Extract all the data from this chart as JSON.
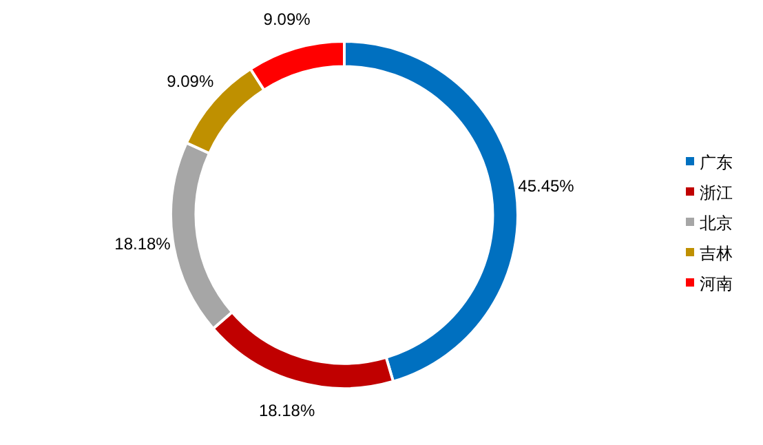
{
  "chart_data": {
    "type": "donut",
    "categories": [
      "广东",
      "浙江",
      "北京",
      "吉林",
      "河南"
    ],
    "values": [
      45.45,
      18.18,
      18.18,
      9.09,
      9.09
    ],
    "colors": [
      "#0070c0",
      "#c00000",
      "#a6a6a6",
      "#bf9000",
      "#ff0000"
    ],
    "value_labels": [
      "45.45%",
      "18.18%",
      "18.18%",
      "9.09%",
      "9.09%"
    ],
    "legend": "right"
  }
}
